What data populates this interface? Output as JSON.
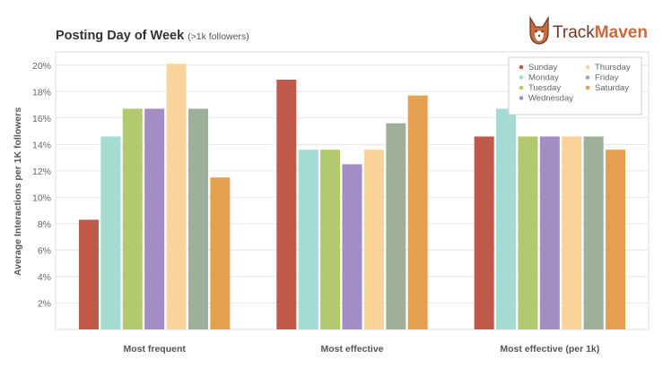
{
  "chart_data": {
    "type": "bar",
    "title": "Posting Day of Week",
    "subtitle": "(>1k followers)",
    "xlabel": "",
    "ylabel": "Average Interactions per 1K followers",
    "ylim": [
      0,
      21
    ],
    "y_ticks": [
      2,
      4,
      6,
      8,
      10,
      12,
      14,
      16,
      18,
      20
    ],
    "y_tick_labels": [
      "2%",
      "4%",
      "6%",
      "8%",
      "10%",
      "12%",
      "14%",
      "16%",
      "18%",
      "20%"
    ],
    "categories": [
      "Most frequent",
      "Most effective",
      "Most effective (per 1k)"
    ],
    "series": [
      {
        "name": "Sunday",
        "color": "#c0594a",
        "values": [
          8.3,
          18.9,
          14.6
        ]
      },
      {
        "name": "Monday",
        "color": "#a4dbd2",
        "values": [
          14.6,
          13.6,
          16.7
        ]
      },
      {
        "name": "Tuesday",
        "color": "#b3c96e",
        "values": [
          16.7,
          13.6,
          14.6
        ]
      },
      {
        "name": "Wednesday",
        "color": "#a48cc4",
        "values": [
          16.7,
          12.5,
          14.6
        ]
      },
      {
        "name": "Thursday",
        "color": "#fad39a",
        "values": [
          20.1,
          13.6,
          14.6
        ]
      },
      {
        "name": "Friday",
        "color": "#9fb09a",
        "values": [
          16.7,
          15.6,
          14.6
        ]
      },
      {
        "name": "Saturday",
        "color": "#e5a04f",
        "values": [
          11.5,
          17.7,
          13.6
        ]
      }
    ],
    "legend_position": "top-right",
    "grid": true
  },
  "brand": {
    "name_part1": "Track",
    "name_part2": "Maven",
    "logo_icon": "corgi-icon",
    "logo_colors": {
      "fur": "#c96b3f",
      "outline": "#6e3b2a",
      "face": "#ffffff"
    }
  }
}
